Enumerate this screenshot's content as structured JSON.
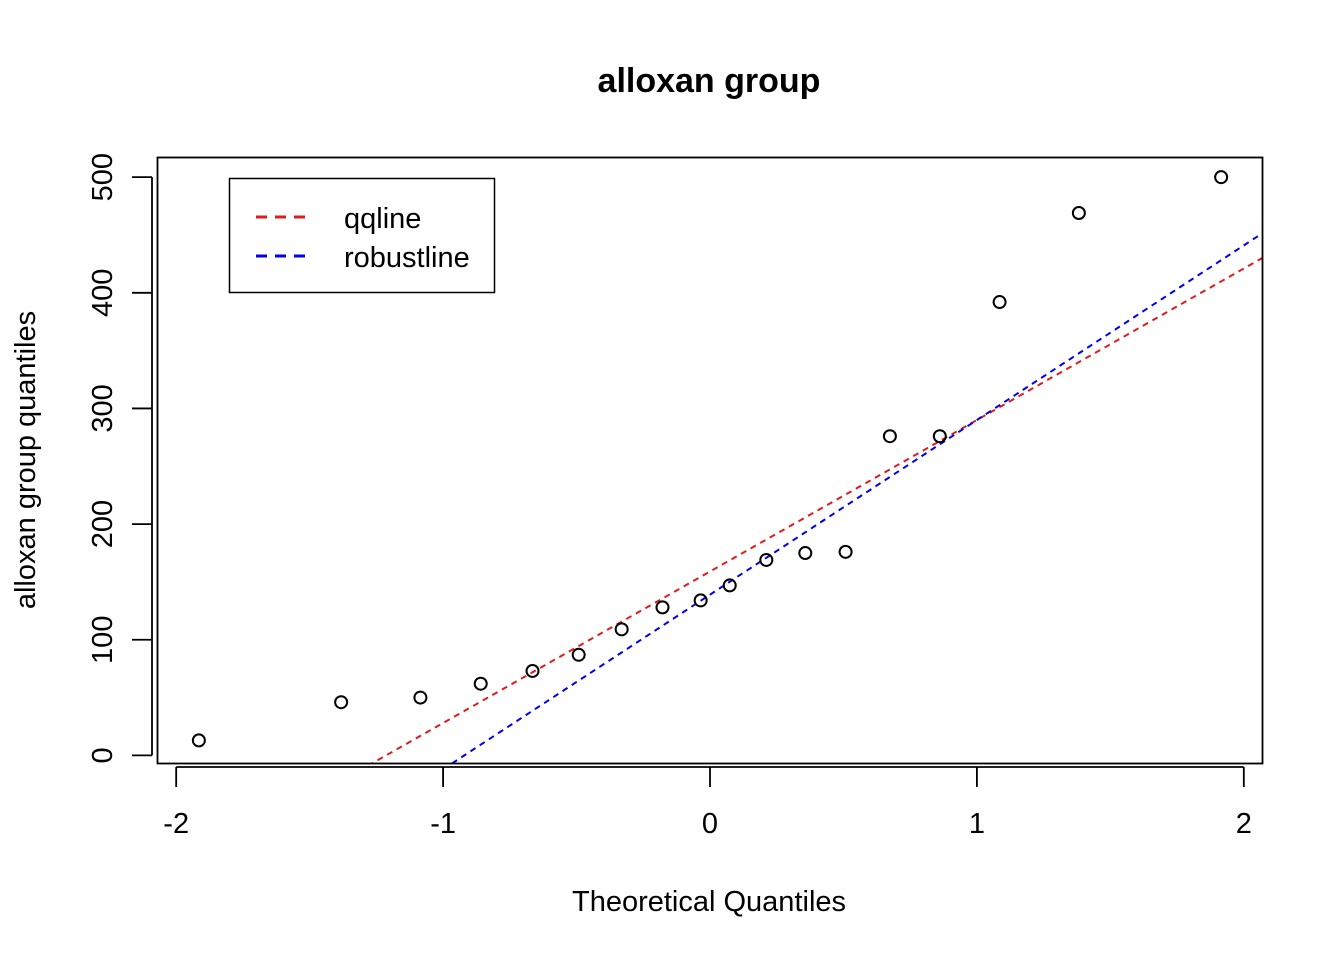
{
  "chart_data": {
    "type": "scatter",
    "title": "alloxan group",
    "xlabel": "Theoretical Quantiles",
    "ylabel": "alloxan group quantiles",
    "xlim": [
      -2.07,
      2.07
    ],
    "ylim": [
      -7,
      517
    ],
    "x_ticks": [
      -2,
      -1,
      0,
      1,
      2
    ],
    "x_tick_labels": [
      "-2",
      "-1",
      "0",
      "1",
      "2"
    ],
    "y_ticks": [
      0,
      100,
      200,
      300,
      400,
      500
    ],
    "y_tick_labels": [
      "0",
      "100",
      "200",
      "300",
      "400",
      "500"
    ],
    "grid": false,
    "legend_position": "top-left",
    "points": {
      "x": [
        -1.915,
        -1.382,
        -1.085,
        -0.859,
        -0.665,
        -0.492,
        -0.331,
        -0.178,
        -0.035,
        0.074,
        0.211,
        0.357,
        0.508,
        0.674,
        0.861,
        1.085,
        1.382,
        1.915
      ],
      "y": [
        13,
        46,
        50,
        62,
        73,
        87,
        109,
        128,
        134,
        147,
        169,
        175,
        176,
        276,
        276,
        392,
        469,
        500
      ]
    },
    "series": [
      {
        "name": "qqline",
        "color": "#e31a1c",
        "line_type": "dashed",
        "intercept": 159,
        "slope": 131
      },
      {
        "name": "robustline",
        "color": "#0000ee",
        "line_type": "dashed",
        "intercept": 139,
        "slope": 151
      }
    ]
  }
}
